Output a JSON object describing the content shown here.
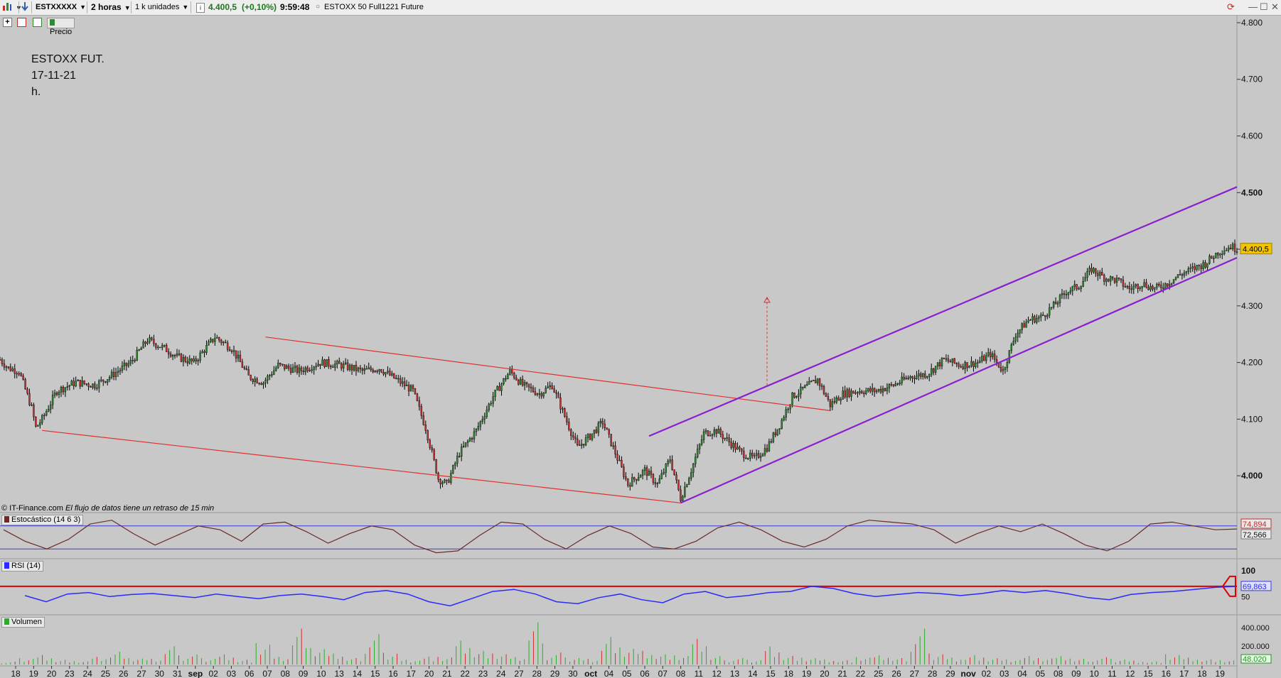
{
  "toolbar": {
    "symbol": "ESTXXXXX",
    "timeframe": "2 horas",
    "units": "1 k unidades",
    "info_icon": "info-icon",
    "last_price": "4.400,5",
    "change": "(+0,10%)",
    "time": "9:59:48",
    "instrument": "ESTOXX 50 Full1221 Future"
  },
  "row2": {
    "price_label": "Precio"
  },
  "notes": {
    "line1": "ESTOXX FUT.",
    "line2": "17-11-21",
    "line3": "h."
  },
  "source": {
    "copyright": "© IT-Finance.com",
    "delay": "El flujo de datos tiene un retraso de 15 min"
  },
  "colors": {
    "background": "#c8c8c8",
    "candle_up": "#2e8b2e",
    "candle_down": "#c83232",
    "wick": "#000000",
    "channel_red": "#e03030",
    "channel_purple": "#8a1fd0",
    "stoch": "#6b2b2b",
    "stoch_level": "#3a3ad0",
    "rsi": "#2a2aff",
    "rsi_level": "#e00000",
    "vol_up": "#2eaa2e",
    "vol_down": "#d03030",
    "price_tag": "#f2c400"
  },
  "chart_data": [
    {
      "type": "candlestick",
      "title": "",
      "price_axis": {
        "ticks": [
          "4.800",
          "4.700",
          "4.600",
          "4.500",
          "4.400",
          "4.300",
          "4.200",
          "4.100",
          "4.000"
        ],
        "bold_ticks": [
          "4.500",
          "4.000"
        ],
        "ylim": [
          3940,
          4810
        ],
        "current": "4.400,5"
      },
      "x_ticks": [
        "18",
        "19",
        "20",
        "23",
        "24",
        "25",
        "26",
        "27",
        "30",
        "31",
        "sep",
        "02",
        "03",
        "06",
        "07",
        "08",
        "09",
        "10",
        "13",
        "14",
        "15",
        "16",
        "17",
        "20",
        "21",
        "22",
        "23",
        "24",
        "27",
        "28",
        "29",
        "30",
        "oct",
        "04",
        "05",
        "06",
        "07",
        "08",
        "11",
        "12",
        "13",
        "14",
        "15",
        "18",
        "19",
        "20",
        "21",
        "22",
        "25",
        "26",
        "27",
        "28",
        "29",
        "nov",
        "02",
        "03",
        "04",
        "05",
        "08",
        "09",
        "10",
        "11",
        "12",
        "15",
        "16",
        "17",
        "18",
        "19"
      ],
      "bold_x_ticks": [
        "sep",
        "oct",
        "nov"
      ],
      "close_path": [
        [
          0,
          4205
        ],
        [
          4,
          4190
        ],
        [
          9,
          4185
        ],
        [
          15,
          4120
        ],
        [
          17,
          4085
        ],
        [
          20,
          4100
        ],
        [
          27,
          4150
        ],
        [
          36,
          4165
        ],
        [
          45,
          4160
        ],
        [
          52,
          4175
        ],
        [
          62,
          4200
        ],
        [
          70,
          4240
        ],
        [
          78,
          4225
        ],
        [
          84,
          4210
        ],
        [
          92,
          4200
        ],
        [
          102,
          4245
        ],
        [
          110,
          4225
        ],
        [
          118,
          4175
        ],
        [
          125,
          4165
        ],
        [
          132,
          4195
        ],
        [
          142,
          4185
        ],
        [
          152,
          4200
        ],
        [
          162,
          4195
        ],
        [
          172,
          4185
        ],
        [
          180,
          4190
        ],
        [
          188,
          4170
        ],
        [
          196,
          4150
        ],
        [
          202,
          4085
        ],
        [
          208,
          3995
        ],
        [
          212,
          3985
        ],
        [
          218,
          4040
        ],
        [
          226,
          4080
        ],
        [
          234,
          4140
        ],
        [
          242,
          4185
        ],
        [
          248,
          4160
        ],
        [
          256,
          4145
        ],
        [
          262,
          4160
        ],
        [
          268,
          4105
        ],
        [
          274,
          4050
        ],
        [
          280,
          4070
        ],
        [
          286,
          4095
        ],
        [
          292,
          4040
        ],
        [
          298,
          3985
        ],
        [
          306,
          4010
        ],
        [
          312,
          3985
        ],
        [
          318,
          4030
        ],
        [
          323,
          3960
        ],
        [
          328,
          4010
        ],
        [
          334,
          4075
        ],
        [
          340,
          4080
        ],
        [
          346,
          4060
        ],
        [
          352,
          4040
        ],
        [
          358,
          4030
        ],
        [
          364,
          4050
        ],
        [
          370,
          4090
        ],
        [
          376,
          4140
        ],
        [
          382,
          4155
        ],
        [
          388,
          4170
        ],
        [
          394,
          4125
        ],
        [
          400,
          4145
        ],
        [
          408,
          4150
        ],
        [
          416,
          4150
        ],
        [
          424,
          4160
        ],
        [
          432,
          4175
        ],
        [
          440,
          4180
        ],
        [
          448,
          4205
        ],
        [
          456,
          4195
        ],
        [
          464,
          4200
        ],
        [
          470,
          4215
        ],
        [
          476,
          4185
        ],
        [
          482,
          4250
        ],
        [
          488,
          4275
        ],
        [
          494,
          4280
        ],
        [
          500,
          4300
        ],
        [
          506,
          4325
        ],
        [
          512,
          4335
        ],
        [
          518,
          4365
        ],
        [
          524,
          4350
        ],
        [
          530,
          4345
        ],
        [
          536,
          4330
        ],
        [
          542,
          4340
        ],
        [
          548,
          4330
        ],
        [
          554,
          4340
        ],
        [
          560,
          4355
        ],
        [
          566,
          4365
        ],
        [
          572,
          4375
        ],
        [
          578,
          4395
        ],
        [
          584,
          4405
        ],
        [
          587,
          4400.5
        ]
      ],
      "channels": [
        {
          "color": "red",
          "from": [
            20,
            4080
          ],
          "to": [
            323,
            3952
          ]
        },
        {
          "color": "red",
          "from": [
            126,
            4245
          ],
          "to": [
            394,
            4115
          ]
        },
        {
          "color": "purple",
          "from": [
            323,
            3952
          ],
          "to": [
            587,
            4385
          ]
        },
        {
          "color": "purple",
          "from": [
            308,
            4070
          ],
          "to": [
            587,
            4510
          ]
        }
      ],
      "target_arrow": {
        "x": 364,
        "from": 4160,
        "to": 4315
      }
    },
    {
      "type": "line",
      "title": "Estocástico (14 6 3)",
      "levels": [
        80,
        20
      ],
      "last_values": [
        "74,894",
        "72,566"
      ],
      "series": [
        {
          "values": [
            70,
            40,
            20,
            45,
            85,
            95,
            60,
            30,
            55,
            80,
            70,
            40,
            85,
            90,
            65,
            35,
            60,
            80,
            70,
            30,
            10,
            15,
            55,
            90,
            85,
            45,
            20,
            55,
            80,
            60,
            25,
            20,
            40,
            75,
            90,
            70,
            40,
            25,
            45,
            80,
            95,
            90,
            85,
            70,
            35,
            60,
            80,
            65,
            85,
            60,
            30,
            15,
            40,
            85,
            90,
            80,
            70,
            72
          ]
        }
      ]
    },
    {
      "type": "line",
      "title": "RSI (14)",
      "ticks": [
        "100",
        "50"
      ],
      "levels": [
        70
      ],
      "last_value": "69,863",
      "series": [
        {
          "values": [
            52,
            40,
            55,
            58,
            50,
            54,
            56,
            52,
            48,
            55,
            50,
            46,
            52,
            55,
            50,
            44,
            58,
            62,
            55,
            40,
            32,
            46,
            60,
            64,
            55,
            40,
            36,
            48,
            55,
            44,
            38,
            55,
            60,
            48,
            52,
            58,
            60,
            70,
            66,
            56,
            50,
            54,
            58,
            56,
            52,
            56,
            62,
            58,
            62,
            56,
            48,
            44,
            54,
            58,
            60,
            64,
            68,
            70
          ]
        }
      ]
    },
    {
      "type": "bar",
      "title": "Volumen",
      "ticks": [
        "400.000",
        "200.000"
      ],
      "last_value": "48.020",
      "values": [
        30,
        80,
        120,
        60,
        40,
        90,
        150,
        70,
        60,
        200,
        110,
        80,
        130,
        60,
        250,
        90,
        420,
        180,
        120,
        70,
        330,
        150,
        60,
        100,
        90,
        280,
        160,
        120,
        80,
        460,
        130,
        90,
        70,
        350,
        200,
        160,
        120,
        100,
        280,
        90,
        70,
        60,
        230,
        110,
        80,
        60,
        50,
        80,
        100,
        70,
        390,
        140,
        90,
        120,
        80,
        60,
        100,
        70,
        90,
        60,
        80,
        70,
        50,
        40,
        120,
        80,
        60,
        48
      ]
    }
  ]
}
